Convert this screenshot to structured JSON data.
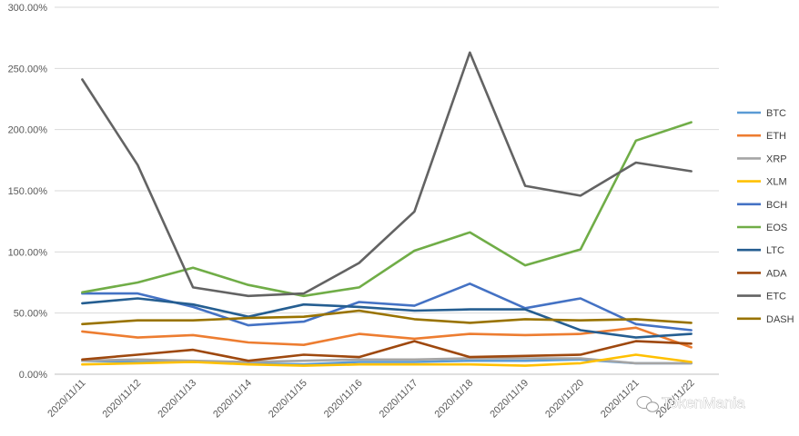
{
  "chart_data": {
    "type": "line",
    "title": "",
    "xlabel": "",
    "ylabel": "",
    "categories": [
      "2020/11/11",
      "2020/11/12",
      "2020/11/13",
      "2020/11/14",
      "2020/11/15",
      "2020/11/16",
      "2020/11/17",
      "2020/11/18",
      "2020/11/19",
      "2020/11/20",
      "2020/11/21",
      "2020/11/22"
    ],
    "ylim": [
      0,
      300
    ],
    "yticks": [
      0,
      50,
      100,
      150,
      200,
      250,
      300
    ],
    "ytick_labels": [
      "0.00%",
      "50.00%",
      "100.00%",
      "150.00%",
      "200.00%",
      "250.00%",
      "300.00%"
    ],
    "grid": true,
    "legend_position": "right",
    "series": [
      {
        "name": "BTC",
        "color": "#5b9bd5",
        "values": [
          11,
          10,
          10,
          9,
          8,
          10,
          10,
          11,
          11,
          12,
          9,
          9
        ]
      },
      {
        "name": "ETH",
        "color": "#ed7d31",
        "values": [
          35,
          30,
          32,
          26,
          24,
          33,
          29,
          33,
          32,
          33,
          38,
          22
        ]
      },
      {
        "name": "XRP",
        "color": "#a5a5a5",
        "values": [
          11,
          12,
          11,
          10,
          11,
          12,
          12,
          13,
          13,
          13,
          9,
          9
        ]
      },
      {
        "name": "XLM",
        "color": "#ffc000",
        "values": [
          8,
          9,
          10,
          8,
          7,
          8,
          8,
          8,
          7,
          9,
          16,
          10
        ]
      },
      {
        "name": "BCH",
        "color": "#4472c4",
        "values": [
          66,
          66,
          55,
          40,
          43,
          59,
          56,
          74,
          54,
          62,
          41,
          36
        ]
      },
      {
        "name": "EOS",
        "color": "#70ad47",
        "values": [
          67,
          75,
          87,
          73,
          64,
          71,
          101,
          116,
          89,
          102,
          191,
          206
        ]
      },
      {
        "name": "LTC",
        "color": "#255e91",
        "values": [
          58,
          62,
          57,
          47,
          57,
          55,
          52,
          53,
          53,
          36,
          30,
          33
        ]
      },
      {
        "name": "ADA",
        "color": "#9e480e",
        "values": [
          12,
          16,
          20,
          11,
          16,
          14,
          27,
          14,
          15,
          16,
          27,
          25
        ]
      },
      {
        "name": "ETC",
        "color": "#636363",
        "values": [
          241,
          171,
          71,
          64,
          66,
          91,
          133,
          263,
          154,
          146,
          173,
          166
        ]
      },
      {
        "name": "DASH",
        "color": "#997300",
        "values": [
          41,
          44,
          44,
          46,
          47,
          52,
          45,
          42,
          45,
          44,
          45,
          42
        ]
      }
    ]
  },
  "watermark": {
    "text": "TokenMania"
  }
}
